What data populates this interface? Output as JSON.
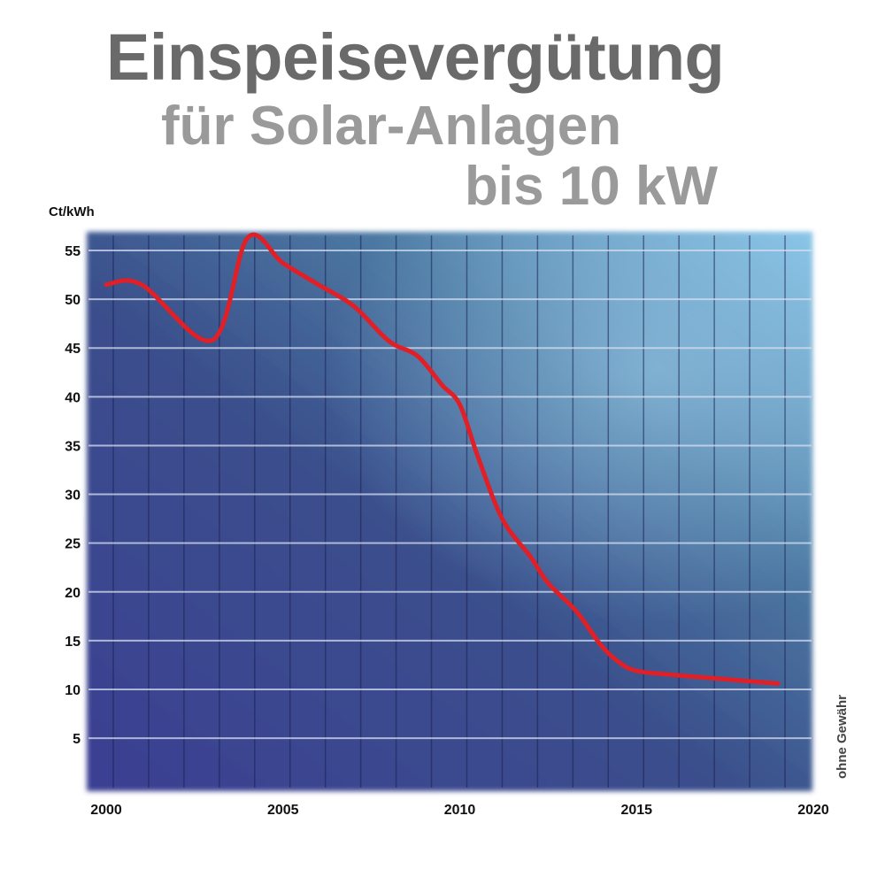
{
  "header": {
    "title_line1": "Einspeisevergütung",
    "title_line2": "für Solar-Anlagen",
    "title_line3": "bis 10 kW"
  },
  "disclaimer": "ohne Gewähr",
  "colors": {
    "line": "#e01f26",
    "title_dark": "#6a6a6a",
    "title_light": "#9a9a9a",
    "panel_dark": "#3b3f92",
    "panel_light": "#86c3e6",
    "grid": "#d6def0"
  },
  "chart_data": {
    "type": "line",
    "title": "Einspeisevergütung für Solar-Anlagen bis 10 kW",
    "ylabel": "Ct/kWh",
    "xlabel": "",
    "xlim": [
      2000,
      2020
    ],
    "ylim": [
      0,
      57
    ],
    "x_ticks": [
      2000,
      2005,
      2010,
      2015,
      2020
    ],
    "y_ticks": [
      5,
      10,
      15,
      20,
      25,
      30,
      35,
      40,
      45,
      50,
      55
    ],
    "grid": true,
    "series": [
      {
        "x": [
          2000,
          2001,
          2003,
          2004,
          2005,
          2006,
          2007,
          2008,
          2008.8,
          2009.5,
          2010,
          2010.5,
          2011.2,
          2012,
          2012.5,
          2013.3,
          2014,
          2014.5,
          2015,
          2016,
          2017,
          2018,
          2019
        ],
        "values": [
          51.5,
          51.5,
          45.8,
          56.3,
          53.7,
          51.5,
          49.3,
          45.7,
          44.2,
          41.2,
          39.2,
          34.0,
          27.5,
          23.6,
          20.9,
          18.0,
          14.5,
          12.8,
          11.9,
          11.5,
          11.2,
          10.9,
          10.6
        ]
      }
    ]
  }
}
